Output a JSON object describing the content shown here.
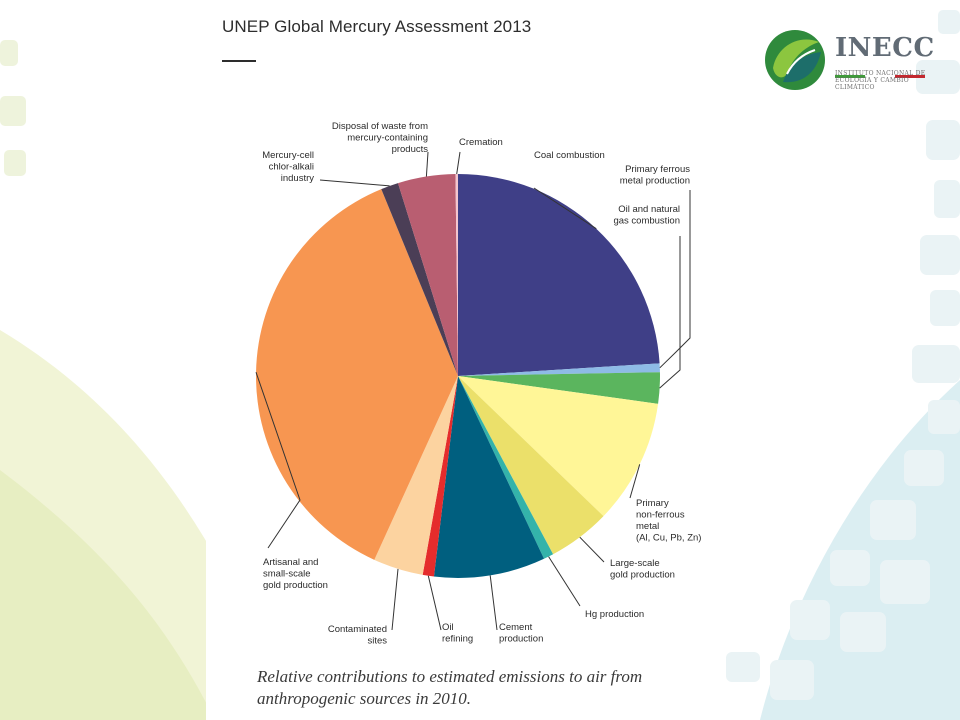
{
  "slide": {
    "title": "UNEP Global Mercury Assessment 2013",
    "caption": "Relative contributions to estimated emissions to air from anthropogenic sources in 2010."
  },
  "logo": {
    "name": "INECC",
    "subtitle": "INSTITUTO NACIONAL DE ECOLOGÍA Y CAMBIO CLIMÁTICO",
    "colors": [
      "#3f9a3a",
      "#ffffff",
      "#c3282f"
    ]
  },
  "chart_data": {
    "type": "pie",
    "title": "",
    "unit": "% of estimated anthropogenic emissions to air, 2010",
    "slices": [
      {
        "label": [
          "Coal combustion"
        ],
        "value": 24.0,
        "color": "#3f3f87"
      },
      {
        "label": [
          "Primary ferrous",
          "metal production"
        ],
        "value": 0.7,
        "color": "#8ebbe6"
      },
      {
        "label": [
          "Oil and natural",
          "gas combustion"
        ],
        "value": 2.5,
        "color": "#5bb55e"
      },
      {
        "label": [
          "Primary",
          "non-ferrous",
          "metal",
          "(Al, Cu, Pb, Zn)"
        ],
        "value": 10.0,
        "color": "#fff697"
      },
      {
        "label": [
          "Large-scale",
          "gold production"
        ],
        "value": 5.0,
        "color": "#ebe06a"
      },
      {
        "label": [
          "Hg production"
        ],
        "value": 0.8,
        "color": "#34b3aa"
      },
      {
        "label": [
          "Cement",
          "production"
        ],
        "value": 8.9,
        "color": "#005f7f"
      },
      {
        "label": [
          "Oil",
          "refining"
        ],
        "value": 0.9,
        "color": "#e52c2c"
      },
      {
        "label": [
          "Contaminated",
          "sites"
        ],
        "value": 4.0,
        "color": "#fcd3a0"
      },
      {
        "label": [
          "Artisanal and",
          "small-scale",
          "gold production"
        ],
        "value": 37.0,
        "color": "#f79651"
      },
      {
        "label": [
          "Mercury-cell",
          "chlor-alkali",
          "industry"
        ],
        "value": 1.4,
        "color": "#4b3e56"
      },
      {
        "label": [
          "Disposal of waste from",
          "mercury-containing",
          "products"
        ],
        "value": 4.6,
        "color": "#b95e71"
      },
      {
        "label": [
          "Cremation"
        ],
        "value": 0.2,
        "color": "#f4c6cf"
      }
    ]
  }
}
